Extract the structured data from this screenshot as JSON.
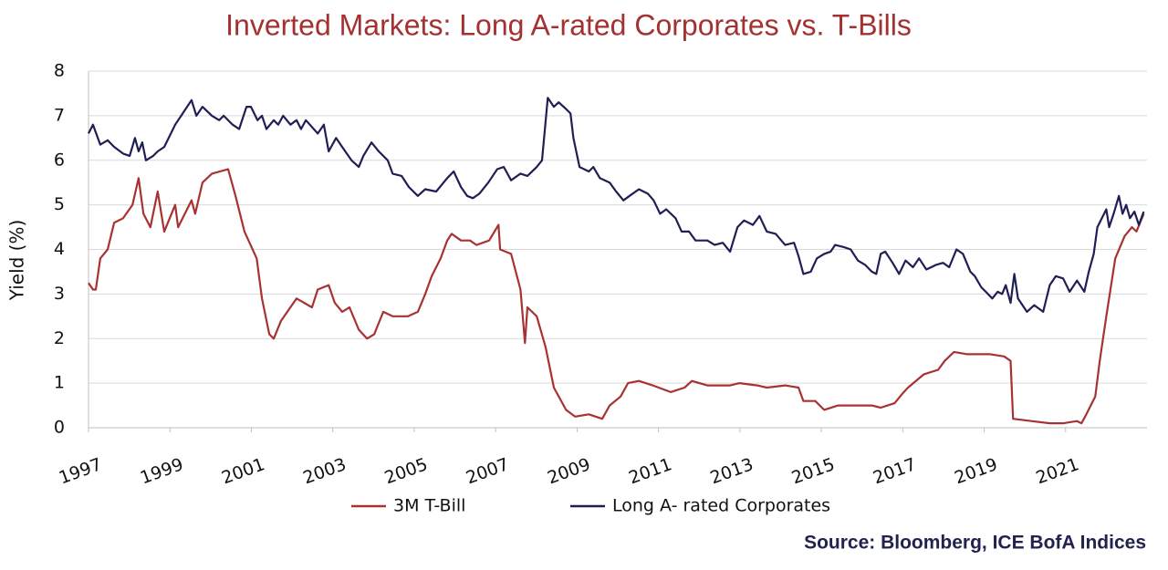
{
  "chart_data": {
    "type": "line",
    "title": "Inverted Markets: Long A-rated Corporates vs. T-Bills",
    "y_label": "Yield (%)",
    "source": "Source: Bloomberg, ICE BofA Indices",
    "xlim": [
      1997,
      2023
    ],
    "xticks": [
      1997,
      1999,
      2001,
      2003,
      2005,
      2007,
      2009,
      2011,
      2013,
      2015,
      2017,
      2019,
      2021
    ],
    "ylim": [
      0,
      8
    ],
    "yticks": [
      0,
      1,
      2,
      3,
      4,
      5,
      6,
      7,
      8
    ],
    "grid": true,
    "series": [
      {
        "name": "3M T-Bill",
        "color": "#a83232",
        "x": [
          1997.0,
          1997.11,
          1997.18,
          1997.29,
          1997.47,
          1997.63,
          1997.85,
          1998.08,
          1998.23,
          1998.35,
          1998.52,
          1998.7,
          1998.86,
          1999.13,
          1999.2,
          1999.53,
          1999.62,
          1999.8,
          2000.03,
          2000.43,
          2000.61,
          2000.83,
          2001.13,
          2001.26,
          2001.44,
          2001.55,
          2001.73,
          2002.11,
          2002.49,
          2002.63,
          2002.9,
          2003.05,
          2003.23,
          2003.41,
          2003.64,
          2003.84,
          2004.02,
          2004.24,
          2004.47,
          2004.85,
          2005.09,
          2005.27,
          2005.43,
          2005.65,
          2005.81,
          2005.92,
          2006.15,
          2006.37,
          2006.53,
          2006.84,
          2007.07,
          2007.11,
          2007.38,
          2007.61,
          2007.72,
          2007.78,
          2008.01,
          2008.23,
          2008.43,
          2008.73,
          2008.95,
          2009.29,
          2009.62,
          2009.8,
          2010.07,
          2010.25,
          2010.52,
          2010.86,
          2011.3,
          2011.64,
          2011.82,
          2012.2,
          2012.76,
          2012.99,
          2013.43,
          2013.66,
          2014.11,
          2014.44,
          2014.56,
          2014.85,
          2015.07,
          2015.41,
          2015.79,
          2016.24,
          2016.46,
          2016.8,
          2016.98,
          2017.13,
          2017.52,
          2017.87,
          2018.03,
          2018.26,
          2018.59,
          2019.15,
          2019.49,
          2019.65,
          2019.71,
          2020.16,
          2020.61,
          2020.95,
          2021.28,
          2021.39,
          2021.51,
          2021.73,
          2021.84,
          2022.0,
          2022.22,
          2022.45,
          2022.63,
          2022.74,
          2022.92
        ],
        "values": [
          3.25,
          3.1,
          3.1,
          3.8,
          4.0,
          4.6,
          4.7,
          5.0,
          5.6,
          4.8,
          4.5,
          5.3,
          4.4,
          5.0,
          4.5,
          5.1,
          4.8,
          5.5,
          5.7,
          5.8,
          5.2,
          4.4,
          3.8,
          2.9,
          2.1,
          2.0,
          2.4,
          2.9,
          2.7,
          3.1,
          3.2,
          2.8,
          2.6,
          2.7,
          2.2,
          2.0,
          2.1,
          2.6,
          2.5,
          2.5,
          2.6,
          3.0,
          3.4,
          3.8,
          4.2,
          4.35,
          4.2,
          4.2,
          4.1,
          4.2,
          4.55,
          4.0,
          3.9,
          3.1,
          1.9,
          2.7,
          2.5,
          1.8,
          0.9,
          0.4,
          0.25,
          0.3,
          0.2,
          0.5,
          0.7,
          1.0,
          1.05,
          0.95,
          0.8,
          0.9,
          1.05,
          0.95,
          0.95,
          1.0,
          0.95,
          0.9,
          0.95,
          0.9,
          0.6,
          0.6,
          0.4,
          0.5,
          0.5,
          0.5,
          0.45,
          0.55,
          0.75,
          0.9,
          1.2,
          1.3,
          1.5,
          1.7,
          1.65,
          1.65,
          1.6,
          1.5,
          0.2,
          0.15,
          0.1,
          0.1,
          0.15,
          0.1,
          0.3,
          0.7,
          1.5,
          2.5,
          3.8,
          4.3,
          4.5,
          4.4,
          4.8
        ]
      },
      {
        "name": "Long A- rated Corporates",
        "color": "#1f1f55",
        "x": [
          1997.0,
          1997.11,
          1997.29,
          1997.47,
          1997.63,
          1997.85,
          1998.01,
          1998.14,
          1998.23,
          1998.32,
          1998.41,
          1998.59,
          1998.7,
          1998.86,
          1999.13,
          1999.35,
          1999.53,
          1999.65,
          1999.8,
          2000.03,
          2000.21,
          2000.32,
          2000.54,
          2000.7,
          2000.88,
          2000.99,
          2001.15,
          2001.26,
          2001.37,
          2001.55,
          2001.66,
          2001.78,
          2001.96,
          2002.11,
          2002.22,
          2002.34,
          2002.63,
          2002.78,
          2002.9,
          2003.08,
          2003.23,
          2003.46,
          2003.64,
          2003.75,
          2003.95,
          2004.13,
          2004.35,
          2004.47,
          2004.69,
          2004.87,
          2005.09,
          2005.27,
          2005.54,
          2005.81,
          2005.97,
          2006.15,
          2006.3,
          2006.44,
          2006.6,
          2006.82,
          2007.04,
          2007.2,
          2007.38,
          2007.61,
          2007.78,
          2008.01,
          2008.14,
          2008.28,
          2008.43,
          2008.55,
          2008.73,
          2008.84,
          2008.91,
          2009.06,
          2009.29,
          2009.4,
          2009.56,
          2009.8,
          2009.96,
          2010.14,
          2010.29,
          2010.52,
          2010.74,
          2010.88,
          2011.04,
          2011.19,
          2011.42,
          2011.57,
          2011.75,
          2011.91,
          2012.2,
          2012.38,
          2012.58,
          2012.76,
          2012.94,
          2013.1,
          2013.32,
          2013.48,
          2013.66,
          2013.88,
          2014.11,
          2014.33,
          2014.44,
          2014.56,
          2014.74,
          2014.89,
          2015.07,
          2015.23,
          2015.34,
          2015.56,
          2015.72,
          2015.9,
          2016.08,
          2016.24,
          2016.35,
          2016.46,
          2016.57,
          2016.75,
          2016.91,
          2017.07,
          2017.25,
          2017.4,
          2017.58,
          2017.81,
          2017.99,
          2018.14,
          2018.32,
          2018.48,
          2018.66,
          2018.77,
          2018.93,
          2019.04,
          2019.2,
          2019.33,
          2019.44,
          2019.53,
          2019.65,
          2019.74,
          2019.83,
          2020.05,
          2020.23,
          2020.45,
          2020.61,
          2020.76,
          2020.94,
          2021.1,
          2021.28,
          2021.46,
          2021.57,
          2021.69,
          2021.78,
          2022.0,
          2022.07,
          2022.18,
          2022.31,
          2022.4,
          2022.49,
          2022.58,
          2022.69,
          2022.8,
          2022.92
        ],
        "values": [
          6.6,
          6.8,
          6.35,
          6.45,
          6.3,
          6.15,
          6.1,
          6.5,
          6.2,
          6.4,
          6.0,
          6.1,
          6.2,
          6.3,
          6.8,
          7.1,
          7.35,
          7.0,
          7.2,
          7.0,
          6.9,
          7.0,
          6.8,
          6.7,
          7.2,
          7.2,
          6.9,
          7.0,
          6.7,
          6.9,
          6.8,
          7.0,
          6.8,
          6.9,
          6.7,
          6.9,
          6.6,
          6.8,
          6.2,
          6.5,
          6.3,
          6.0,
          5.85,
          6.1,
          6.4,
          6.2,
          6.0,
          5.7,
          5.65,
          5.4,
          5.2,
          5.35,
          5.3,
          5.6,
          5.75,
          5.4,
          5.2,
          5.15,
          5.25,
          5.5,
          5.8,
          5.85,
          5.55,
          5.7,
          5.65,
          5.85,
          6.0,
          7.4,
          7.2,
          7.3,
          7.15,
          7.05,
          6.5,
          5.85,
          5.75,
          5.85,
          5.6,
          5.5,
          5.3,
          5.1,
          5.2,
          5.35,
          5.25,
          5.1,
          4.8,
          4.9,
          4.7,
          4.4,
          4.4,
          4.2,
          4.2,
          4.1,
          4.15,
          3.95,
          4.5,
          4.65,
          4.55,
          4.75,
          4.4,
          4.35,
          4.1,
          4.15,
          3.85,
          3.45,
          3.5,
          3.8,
          3.9,
          3.95,
          4.1,
          4.05,
          4.0,
          3.75,
          3.65,
          3.5,
          3.45,
          3.9,
          3.95,
          3.7,
          3.45,
          3.75,
          3.6,
          3.8,
          3.55,
          3.65,
          3.7,
          3.6,
          4.0,
          3.9,
          3.5,
          3.4,
          3.15,
          3.05,
          2.9,
          3.05,
          3.0,
          3.2,
          2.8,
          3.45,
          2.9,
          2.6,
          2.75,
          2.6,
          3.2,
          3.4,
          3.35,
          3.05,
          3.3,
          3.05,
          3.5,
          3.9,
          4.5,
          4.9,
          4.5,
          4.8,
          5.2,
          4.8,
          5.0,
          4.7,
          4.85,
          4.55,
          4.85
        ]
      }
    ]
  }
}
